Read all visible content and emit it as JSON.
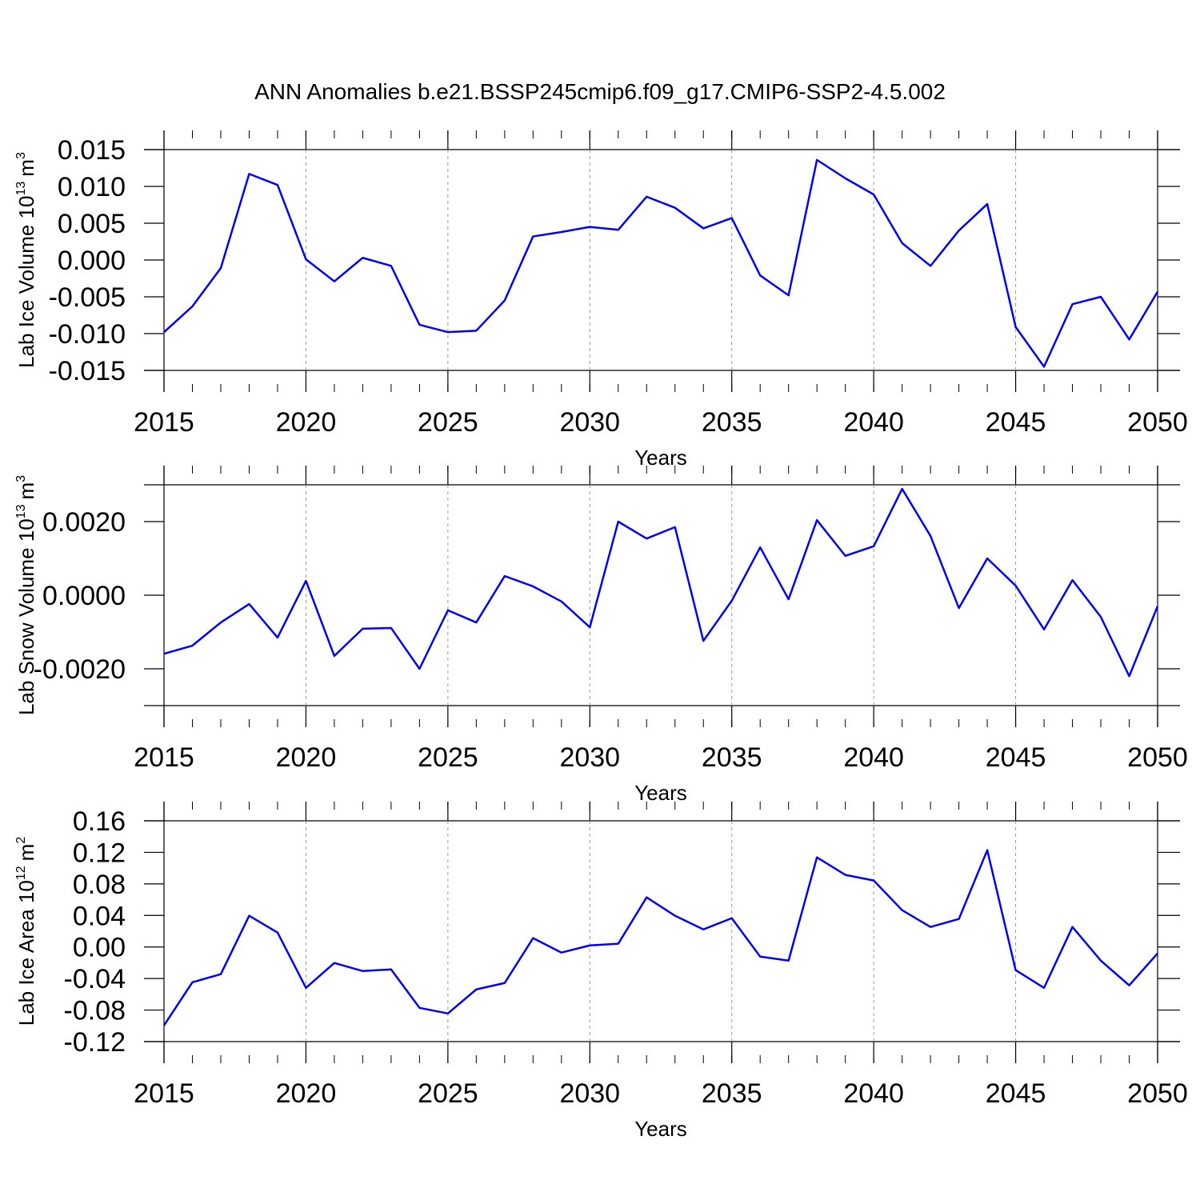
{
  "title": "ANN Anomalies b.e21.BSSP245cmip6.f09_g17.CMIP6-SSP2-4.5.002",
  "chart_data": [
    {
      "type": "line",
      "color": "#0000ff",
      "x_grid": true,
      "xlabel": "Years",
      "ylabel": {
        "text": "Lab Ice Volume 10",
        "exp": "13",
        "unit": "m",
        "unit_exp": "3"
      },
      "x": [
        2015,
        2016,
        2017,
        2018,
        2019,
        2020,
        2021,
        2022,
        2023,
        2024,
        2025,
        2026,
        2027,
        2028,
        2029,
        2030,
        2031,
        2032,
        2033,
        2034,
        2035,
        2036,
        2037,
        2038,
        2039,
        2040,
        2041,
        2042,
        2043,
        2044,
        2045,
        2046,
        2047,
        2048,
        2049,
        2050
      ],
      "values": [
        -0.0098,
        -0.0063,
        -0.0011,
        0.0117,
        0.0102,
        0.0001,
        -0.0029,
        0.0003,
        -0.0008,
        -0.0088,
        -0.0098,
        -0.0096,
        -0.0055,
        0.0032,
        0.0038,
        0.0045,
        0.0041,
        0.0086,
        0.0071,
        0.0043,
        0.0057,
        -0.0021,
        -0.0048,
        0.0136,
        0.0111,
        0.0089,
        0.0023,
        -0.0008,
        0.004,
        0.0076,
        -0.0091,
        -0.0145,
        -0.006,
        -0.005,
        -0.0108,
        -0.0043
      ],
      "xlim": [
        2015,
        2050
      ],
      "xticks": [
        2015,
        2020,
        2025,
        2030,
        2035,
        2040,
        2045,
        2050
      ],
      "ylim": [
        -0.015,
        0.015
      ],
      "yticks": [
        {
          "value": -0.015,
          "label": "-0.015"
        },
        {
          "value": -0.01,
          "label": "-0.010"
        },
        -0.005,
        {
          "value": 0,
          "label": "0.000"
        },
        0.005,
        {
          "value": 0.01,
          "label": "0.010"
        },
        0.015
      ]
    },
    {
      "type": "line",
      "color": "#0000ff",
      "x_grid": true,
      "xlabel": "Years",
      "ylabel": {
        "text": "Lab Snow Volume 10",
        "exp": "13",
        "unit": "m",
        "unit_exp": "3"
      },
      "x": [
        2015,
        2016,
        2017,
        2018,
        2019,
        2020,
        2021,
        2022,
        2023,
        2024,
        2025,
        2026,
        2027,
        2028,
        2029,
        2030,
        2031,
        2032,
        2033,
        2034,
        2035,
        2036,
        2037,
        2038,
        2039,
        2040,
        2041,
        2042,
        2043,
        2044,
        2045,
        2046,
        2047,
        2048,
        2049,
        2050
      ],
      "values": [
        -0.00159,
        -0.00137,
        -0.00074,
        -0.00024,
        -0.00115,
        0.00039,
        -0.00165,
        -0.00091,
        -0.00089,
        -0.002,
        -0.00041,
        -0.00074,
        0.00052,
        0.00024,
        -0.00017,
        -0.00087,
        0.002,
        0.00154,
        0.00185,
        -0.00124,
        -0.00015,
        0.0013,
        -0.00011,
        0.00204,
        0.00107,
        0.00133,
        0.00289,
        0.00161,
        -0.00035,
        0.001,
        0.00026,
        -0.00093,
        0.00041,
        -0.00059,
        -0.0022,
        -0.0003
      ],
      "xlim": [
        2015,
        2050
      ],
      "xticks": [
        2015,
        2020,
        2025,
        2030,
        2035,
        2040,
        2045,
        2050
      ],
      "ylim": [
        -0.003,
        0.003
      ],
      "yticks": [
        {
          "value": -0.002,
          "label": "-0.0020"
        },
        {
          "value": 0,
          "label": "0.0000"
        },
        {
          "value": 0.002,
          "label": "0.0020"
        }
      ]
    },
    {
      "type": "line",
      "color": "#0000ff",
      "x_grid": true,
      "xlabel": "Years",
      "ylabel": {
        "text": "Lab Ice Area 10",
        "exp": "12",
        "unit": "m",
        "unit_exp": "2"
      },
      "x": [
        2015,
        2016,
        2017,
        2018,
        2019,
        2020,
        2021,
        2022,
        2023,
        2024,
        2025,
        2026,
        2027,
        2028,
        2029,
        2030,
        2031,
        2032,
        2033,
        2034,
        2035,
        2036,
        2037,
        2038,
        2039,
        2040,
        2041,
        2042,
        2043,
        2044,
        2045,
        2046,
        2047,
        2048,
        2049,
        2050
      ],
      "values": [
        -0.0995,
        -0.0447,
        -0.0345,
        0.0396,
        0.0183,
        -0.0518,
        -0.0203,
        -0.0305,
        -0.0284,
        -0.0772,
        -0.0843,
        -0.0538,
        -0.0457,
        0.0112,
        -0.0071,
        0.002,
        0.0041,
        0.0629,
        0.0396,
        0.0223,
        0.0365,
        -0.0122,
        -0.0173,
        0.1137,
        0.0914,
        0.0843,
        0.0467,
        0.0254,
        0.0355,
        0.1228,
        -0.0294,
        -0.0518,
        0.0254,
        -0.0173,
        -0.0487,
        -0.0081
      ],
      "xlim": [
        2015,
        2050
      ],
      "xticks": [
        2015,
        2020,
        2025,
        2030,
        2035,
        2040,
        2045,
        2050
      ],
      "ylim": [
        -0.12,
        0.16
      ],
      "yticks": [
        -0.12,
        -0.08,
        -0.04,
        {
          "value": 0,
          "label": "0.00"
        },
        0.04,
        0.08,
        0.12,
        0.16
      ]
    }
  ]
}
